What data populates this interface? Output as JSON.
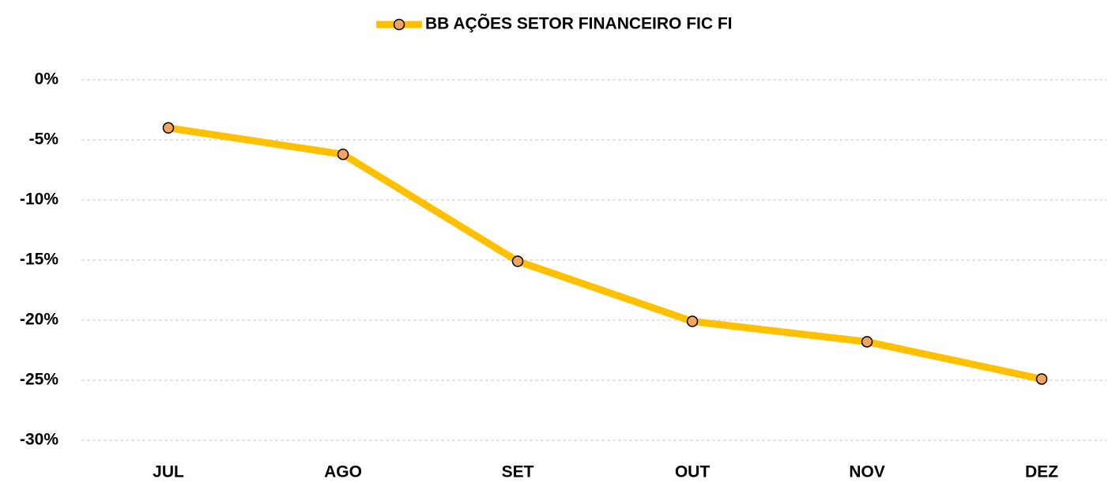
{
  "chart_data": {
    "type": "line",
    "categories": [
      "JUL",
      "AGO",
      "SET",
      "OUT",
      "NOV",
      "DEZ"
    ],
    "series": [
      {
        "name": "BB AÇÕES SETOR FINANCEIRO FIC FI",
        "color": "#FFC000",
        "marker_color": "#F4A460",
        "values": [
          -4.0,
          -6.2,
          -15.1,
          -20.1,
          -21.8,
          -24.9
        ]
      }
    ],
    "ylim": [
      -30,
      0
    ],
    "yticks": [
      {
        "value": 0,
        "label": "0%"
      },
      {
        "value": -5,
        "label": "-5%"
      },
      {
        "value": -10,
        "label": "-10%"
      },
      {
        "value": -15,
        "label": "-15%"
      },
      {
        "value": -20,
        "label": "-20%"
      },
      {
        "value": -25,
        "label": "-25%"
      },
      {
        "value": -30,
        "label": "-30%"
      }
    ],
    "grid": true,
    "legend": "top"
  }
}
